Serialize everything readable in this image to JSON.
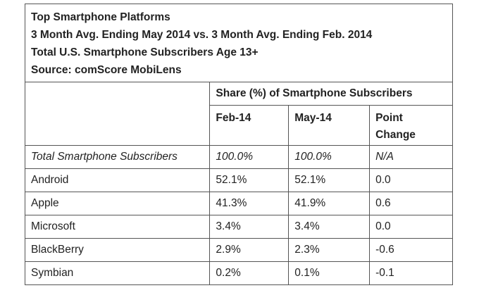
{
  "header": {
    "lines": [
      "Top Smartphone Platforms",
      "3 Month Avg. Ending May 2014 vs. 3 Month Avg. Ending Feb. 2014",
      "Total U.S. Smartphone Subscribers Age 13+",
      "Source: comScore MobiLens"
    ]
  },
  "table": {
    "group_header": "Share (%) of Smartphone Subscribers",
    "columns": [
      "Feb-14",
      "May-14",
      "Point Change"
    ],
    "rows": [
      [
        "Total Smartphone Subscribers",
        "100.0%",
        "100.0%",
        "N/A"
      ],
      [
        "Android",
        "52.1%",
        "52.1%",
        "0.0"
      ],
      [
        "Apple",
        "41.3%",
        "41.9%",
        "0.6"
      ],
      [
        "Microsoft",
        "3.4%",
        "3.4%",
        "0.0"
      ],
      [
        "BlackBerry",
        "2.9%",
        "2.3%",
        "-0.6"
      ],
      [
        "Symbian",
        "0.2%",
        "0.1%",
        "-0.1"
      ]
    ]
  }
}
